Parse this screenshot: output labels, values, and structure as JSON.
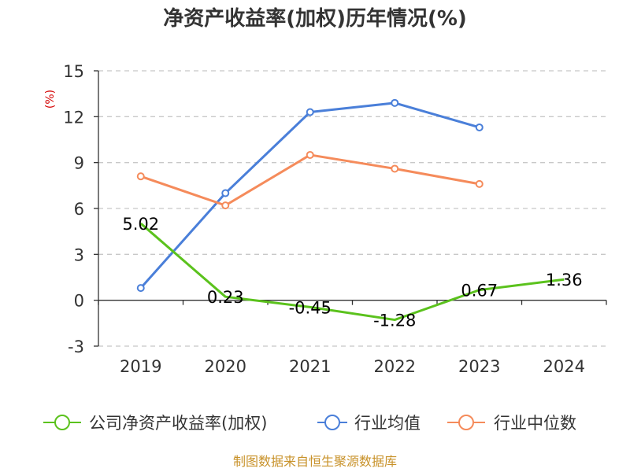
{
  "chart_data": {
    "type": "line",
    "title": "净资产收益率(加权)历年情况(%)",
    "ylabel": "(%)",
    "xlabel": "",
    "categories": [
      "2019",
      "2020",
      "2021",
      "2022",
      "2023",
      "2024"
    ],
    "ylim": [
      -3,
      15
    ],
    "yticks": [
      -3,
      0,
      3,
      6,
      9,
      12,
      15
    ],
    "grid": true,
    "legend_position": "bottom",
    "series": [
      {
        "name": "公司净资产收益率(加权)",
        "color": "#5bc21d",
        "values": [
          5.02,
          0.23,
          -0.45,
          -1.28,
          0.67,
          1.36
        ],
        "labels": [
          "5.02",
          "0.23",
          "-0.45",
          "-1.28",
          "0.67",
          "1.36"
        ],
        "markers": false
      },
      {
        "name": "行业均值",
        "color": "#4a7fd9",
        "values": [
          0.8,
          7.0,
          12.3,
          12.9,
          11.3,
          null
        ],
        "markers": true
      },
      {
        "name": "行业中位数",
        "color": "#f58b5b",
        "values": [
          8.1,
          6.2,
          9.5,
          8.6,
          7.6,
          null
        ],
        "markers": true
      }
    ]
  },
  "source": "制图数据来自恒生聚源数据库"
}
